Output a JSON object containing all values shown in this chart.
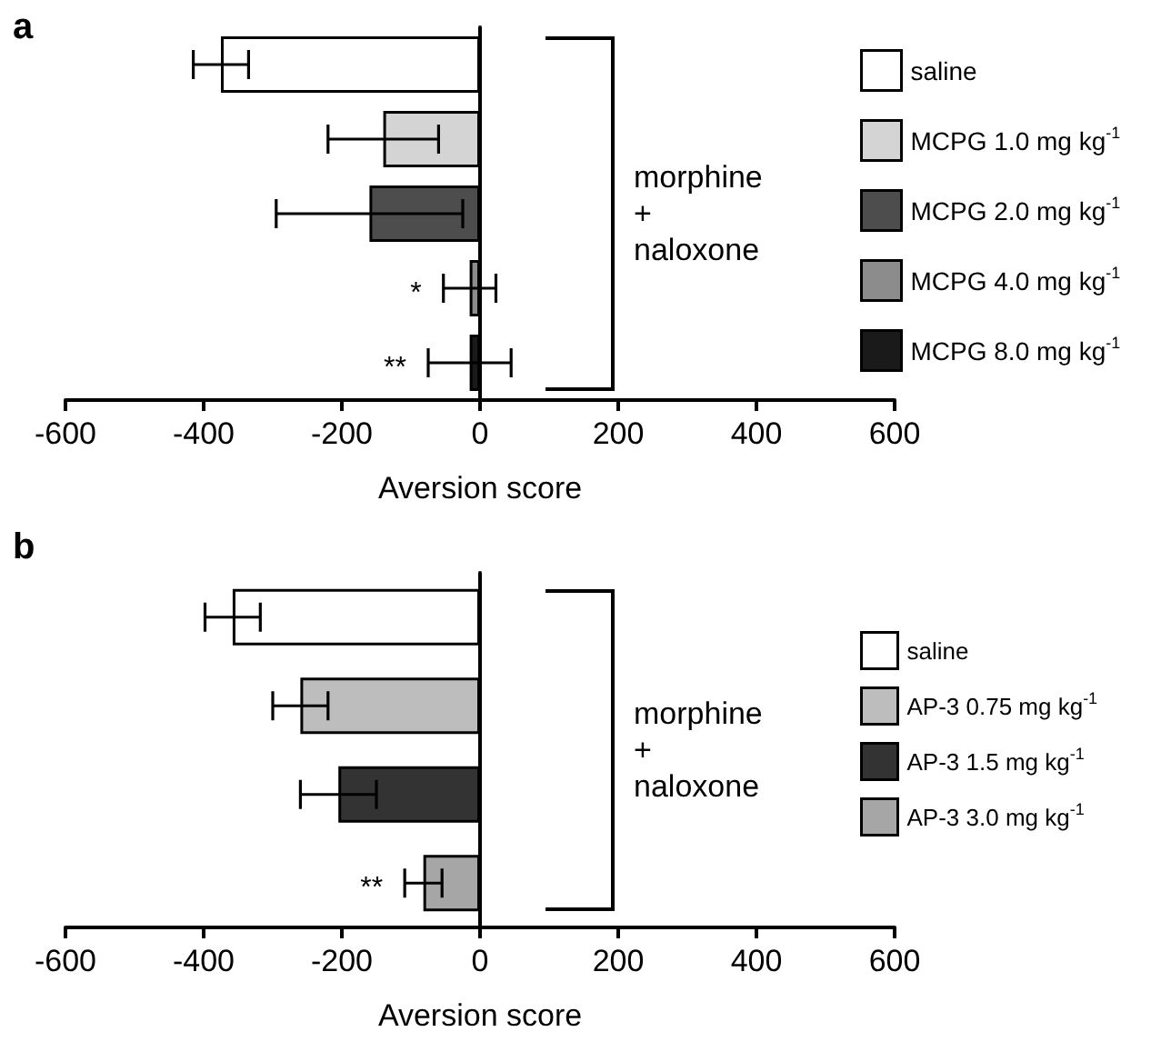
{
  "chart_data": [
    {
      "type": "bar",
      "orientation": "horizontal",
      "title": "a",
      "xlabel": "Aversion score",
      "categories": [
        null,
        null,
        null,
        null,
        null
      ],
      "xlim": [
        -600,
        600
      ],
      "xticks": [
        -600,
        -400,
        -200,
        0,
        200,
        400,
        600
      ],
      "legend": "right",
      "annotations": [
        "morphine\n+\nnaloxone"
      ],
      "series": [
        {
          "name": "saline",
          "color": "#ffffff",
          "values": [
            -375,
            null,
            null,
            null,
            null
          ],
          "errors": [
            40,
            null,
            null,
            null,
            null
          ]
        },
        {
          "name": "MCPG 1.0 mg kg$^{-1}$",
          "color": "#d4d4d4",
          "values": [
            null,
            -140,
            null,
            null,
            null
          ],
          "errors": [
            null,
            80,
            null,
            null,
            null
          ]
        },
        {
          "name": "MCPG 2.0 mg kg$^{-1}$",
          "color": "#4d4d4d",
          "values": [
            null,
            null,
            -160,
            null,
            null
          ],
          "errors": [
            null,
            null,
            135,
            null,
            null
          ]
        },
        {
          "name": "MCPG 4.0 mg kg$^{-1}$",
          "color": "#8c8c8c",
          "values": [
            null,
            null,
            null,
            -15,
            null
          ],
          "errors": [
            null,
            null,
            null,
            38,
            null
          ],
          "value_labels": [
            null,
            null,
            null,
            "*",
            null
          ]
        },
        {
          "name": "MCPG 8.0 mg kg$^{-1}$",
          "color": "#1a1a1a",
          "values": [
            null,
            null,
            null,
            null,
            -15
          ],
          "errors": [
            null,
            null,
            null,
            null,
            60
          ],
          "value_labels": [
            null,
            null,
            null,
            null,
            "**"
          ]
        }
      ]
    },
    {
      "type": "bar",
      "orientation": "horizontal",
      "title": "b",
      "xlabel": "Aversion score",
      "categories": [
        null,
        null,
        null,
        null
      ],
      "xlim": [
        -600,
        600
      ],
      "xticks": [
        -600,
        -400,
        -200,
        0,
        200,
        400,
        600
      ],
      "legend": "right",
      "annotations": [
        "morphine\n+\nnaloxone"
      ],
      "series": [
        {
          "name": "saline",
          "color": "#ffffff",
          "values": [
            -358,
            null,
            null,
            null
          ],
          "errors": [
            40,
            null,
            null,
            null
          ]
        },
        {
          "name": "AP-3 0.75 mg kg$^{-1}$",
          "color": "#bdbdbd",
          "values": [
            null,
            -260,
            null,
            null
          ],
          "errors": [
            null,
            40,
            null,
            null
          ]
        },
        {
          "name": "AP-3 1.5 mg kg$^{-1}$",
          "color": "#333333",
          "values": [
            null,
            null,
            -205,
            null
          ],
          "errors": [
            null,
            null,
            55,
            null
          ]
        },
        {
          "name": "AP-3 3.0 mg kg$^{-1}$",
          "color": "#a6a6a6",
          "values": [
            null,
            null,
            null,
            -82
          ],
          "errors": [
            null,
            null,
            null,
            27
          ],
          "value_labels": [
            null,
            null,
            null,
            "**"
          ]
        }
      ]
    }
  ]
}
